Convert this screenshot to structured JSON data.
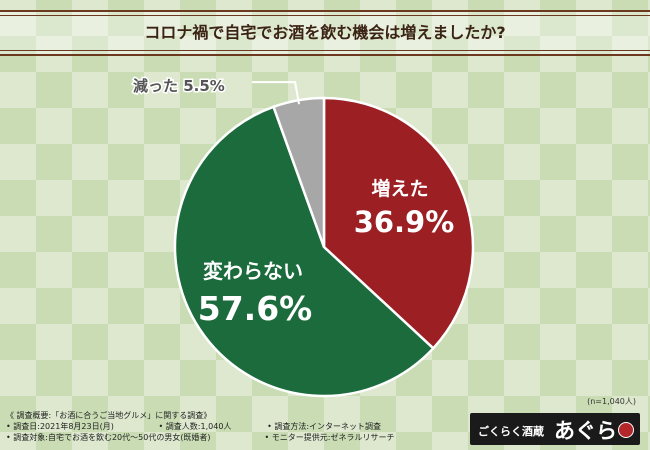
{
  "title": "コロナ禍で自宅でお酒を飲む機会は増えましたか?",
  "chart_data": {
    "type": "pie",
    "slices": [
      {
        "label": "増えた",
        "value": 36.9,
        "value_text": "36.9%",
        "color": "#9b1f23"
      },
      {
        "label": "変わらない",
        "value": 57.6,
        "value_text": "57.6%",
        "color": "#1c6b3d"
      },
      {
        "label": "減った",
        "value": 5.5,
        "value_text": "5.5%",
        "color": "#a7a7a7"
      }
    ],
    "start_angle_deg": 0,
    "direction": "clockwise"
  },
  "n_note": "(n=1,040人)",
  "footer": {
    "heading": "《 調査概要:「お酒に合うご当地グルメ」に関する調査》",
    "period": "• 調査日:2021年8月23日(月)",
    "count": "• 調査人数:1,040人",
    "method": "• 調査方法:インターネット調査",
    "target": "• 調査対象:自宅でお酒を飲む20代〜50代の男女(既婚者)",
    "provider": "• モニター提供元:ゼネラルリサーチ"
  },
  "logo": {
    "small": "ごくらく酒蔵",
    "big": "あぐら"
  }
}
